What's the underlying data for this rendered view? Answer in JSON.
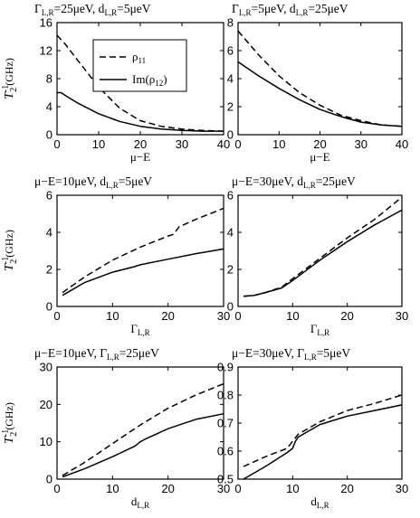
{
  "figure": {
    "ylabel": "T",
    "ylabel_sub": "2",
    "ylabel_sup": "-1",
    "ylabel_unit": "(GHz)"
  },
  "legend": [
    {
      "label": "ρ",
      "sub": "11",
      "style": "dashed"
    },
    {
      "label": "Im(ρ",
      "sub": "12",
      "tail": ")",
      "style": "solid"
    }
  ],
  "chart_data": [
    {
      "type": "line",
      "title": "Γ",
      "title_parts": {
        "a": "Γ",
        "a_sub": "L,R",
        "a_val": "=25μeV, d",
        "b_sub": "L,R",
        "b_val": "=5μeV"
      },
      "xlabel": "μ−E",
      "xlabel_sub": "",
      "xlim": [
        0,
        40
      ],
      "ylim": [
        0,
        16
      ],
      "xticks": [
        0,
        10,
        20,
        30,
        40
      ],
      "yticks": [
        0,
        4,
        8,
        12,
        16
      ],
      "series": [
        {
          "name": "ρ11",
          "style": "dashed",
          "x": [
            0,
            2,
            5,
            10,
            15,
            20,
            25,
            30,
            35,
            40
          ],
          "y": [
            14.2,
            12.9,
            10.6,
            6.8,
            3.8,
            2.0,
            1.2,
            0.8,
            0.6,
            0.5
          ]
        },
        {
          "name": "Im(ρ12)",
          "style": "solid",
          "x": [
            0,
            1,
            2,
            5,
            10,
            15,
            20,
            25,
            30,
            35,
            40
          ],
          "y": [
            6.0,
            6.0,
            5.6,
            4.5,
            3.0,
            1.9,
            1.2,
            0.8,
            0.6,
            0.5,
            0.5
          ]
        }
      ]
    },
    {
      "type": "line",
      "title_parts": {
        "a": "Γ",
        "a_sub": "L,R",
        "a_val": "=5μeV, d",
        "b_sub": "L,R",
        "b_val": "=25μeV"
      },
      "xlabel": "μ−E",
      "xlabel_sub": "",
      "xlim": [
        0,
        40
      ],
      "ylim": [
        0,
        8
      ],
      "xticks": [
        0,
        10,
        20,
        30,
        40
      ],
      "yticks": [
        0,
        2,
        4,
        6,
        8
      ],
      "series": [
        {
          "name": "ρ11",
          "style": "dashed",
          "x": [
            0,
            5,
            10,
            15,
            20,
            25,
            30,
            35,
            40
          ],
          "y": [
            7.4,
            5.7,
            4.2,
            3.0,
            2.1,
            1.4,
            1.0,
            0.7,
            0.6
          ]
        },
        {
          "name": "Im(ρ12)",
          "style": "solid",
          "x": [
            0,
            5,
            10,
            15,
            20,
            25,
            30,
            35,
            40
          ],
          "y": [
            5.2,
            4.2,
            3.3,
            2.5,
            1.8,
            1.3,
            0.9,
            0.7,
            0.6
          ]
        }
      ]
    },
    {
      "type": "line",
      "title_parts": {
        "a": "μ−E=10μeV, d",
        "a_sub": "L,R",
        "a_val": "=5μeV",
        "b_sub": "",
        "b_val": ""
      },
      "xlabel": "Γ",
      "xlabel_sub": "L,R",
      "xlim": [
        0,
        30
      ],
      "ylim": [
        0,
        6
      ],
      "xticks": [
        0,
        10,
        20,
        30
      ],
      "yticks": [
        0,
        2,
        4,
        6
      ],
      "series": [
        {
          "name": "ρ11",
          "style": "dashed",
          "x": [
            1,
            5,
            10,
            15,
            20,
            21,
            22,
            25,
            30
          ],
          "y": [
            0.75,
            1.6,
            2.5,
            3.2,
            3.8,
            3.9,
            4.3,
            4.7,
            5.3
          ]
        },
        {
          "name": "Im(ρ12)",
          "style": "solid",
          "x": [
            1,
            5,
            10,
            14,
            15,
            20,
            25,
            30
          ],
          "y": [
            0.6,
            1.3,
            1.85,
            2.15,
            2.25,
            2.55,
            2.85,
            3.1
          ]
        }
      ]
    },
    {
      "type": "line",
      "title_parts": {
        "a": "μ−E=30μeV, d",
        "a_sub": "L,R",
        "a_val": "=25μeV",
        "b_sub": "",
        "b_val": ""
      },
      "xlabel": "Γ",
      "xlabel_sub": "L,R",
      "xlim": [
        0,
        30
      ],
      "ylim": [
        0,
        6
      ],
      "xticks": [
        0,
        10,
        20,
        30
      ],
      "yticks": [
        0,
        2,
        4,
        6
      ],
      "series": [
        {
          "name": "ρ11",
          "style": "dashed",
          "x": [
            1,
            3,
            5,
            8,
            10,
            15,
            20,
            25,
            30
          ],
          "y": [
            0.55,
            0.6,
            0.75,
            1.05,
            1.5,
            2.6,
            3.7,
            4.7,
            5.9
          ]
        },
        {
          "name": "Im(ρ12)",
          "style": "solid",
          "x": [
            1,
            3,
            5,
            8,
            10,
            15,
            20,
            25,
            30
          ],
          "y": [
            0.55,
            0.6,
            0.75,
            1.0,
            1.4,
            2.5,
            3.5,
            4.4,
            5.2
          ]
        }
      ]
    },
    {
      "type": "line",
      "title_parts": {
        "a": "μ−E=10μeV, Γ",
        "a_sub": "L,R",
        "a_val": "=25μeV",
        "b_sub": "",
        "b_val": ""
      },
      "xlabel": "d",
      "xlabel_sub": "L,R",
      "xlim": [
        0,
        30
      ],
      "ylim": [
        0,
        30
      ],
      "xticks": [
        0,
        10,
        20,
        30
      ],
      "yticks": [
        0,
        10,
        20,
        30
      ],
      "series": [
        {
          "name": "ρ11",
          "style": "dashed",
          "x": [
            1,
            5,
            10,
            15,
            20,
            25,
            30
          ],
          "y": [
            1.0,
            4.5,
            9.5,
            14.5,
            19.0,
            22.5,
            25.5
          ]
        },
        {
          "name": "Im(ρ12)",
          "style": "solid",
          "x": [
            1,
            5,
            10,
            14,
            15,
            16,
            20,
            25,
            30
          ],
          "y": [
            0.6,
            2.8,
            6.0,
            8.8,
            10.0,
            10.8,
            13.5,
            16.0,
            17.5
          ]
        }
      ]
    },
    {
      "type": "line",
      "title_parts": {
        "a": "μ−E=30μeV, Γ",
        "a_sub": "L,R",
        "a_val": "=5μeV",
        "b_sub": "",
        "b_val": ""
      },
      "xlabel": "d",
      "xlabel_sub": "L,R",
      "xlim": [
        0,
        30
      ],
      "ylim": [
        0.5,
        0.9
      ],
      "xticks": [
        0,
        10,
        20,
        30
      ],
      "yticks": [
        0.5,
        0.6,
        0.7,
        0.8,
        0.9
      ],
      "ytick_labels": [
        "0.5",
        "0.6",
        "0.7",
        "0.8",
        "0.9"
      ],
      "series": [
        {
          "name": "ρ11",
          "style": "dashed",
          "x": [
            1,
            5,
            9,
            10,
            11,
            15,
            20,
            25,
            30
          ],
          "y": [
            0.545,
            0.58,
            0.61,
            0.635,
            0.66,
            0.705,
            0.745,
            0.77,
            0.8
          ]
        },
        {
          "name": "Im(ρ12)",
          "style": "solid",
          "x": [
            1,
            5,
            9,
            10,
            10.5,
            11,
            15,
            20,
            25,
            30
          ],
          "y": [
            0.5,
            0.545,
            0.595,
            0.61,
            0.635,
            0.65,
            0.695,
            0.725,
            0.745,
            0.765
          ]
        }
      ]
    }
  ]
}
